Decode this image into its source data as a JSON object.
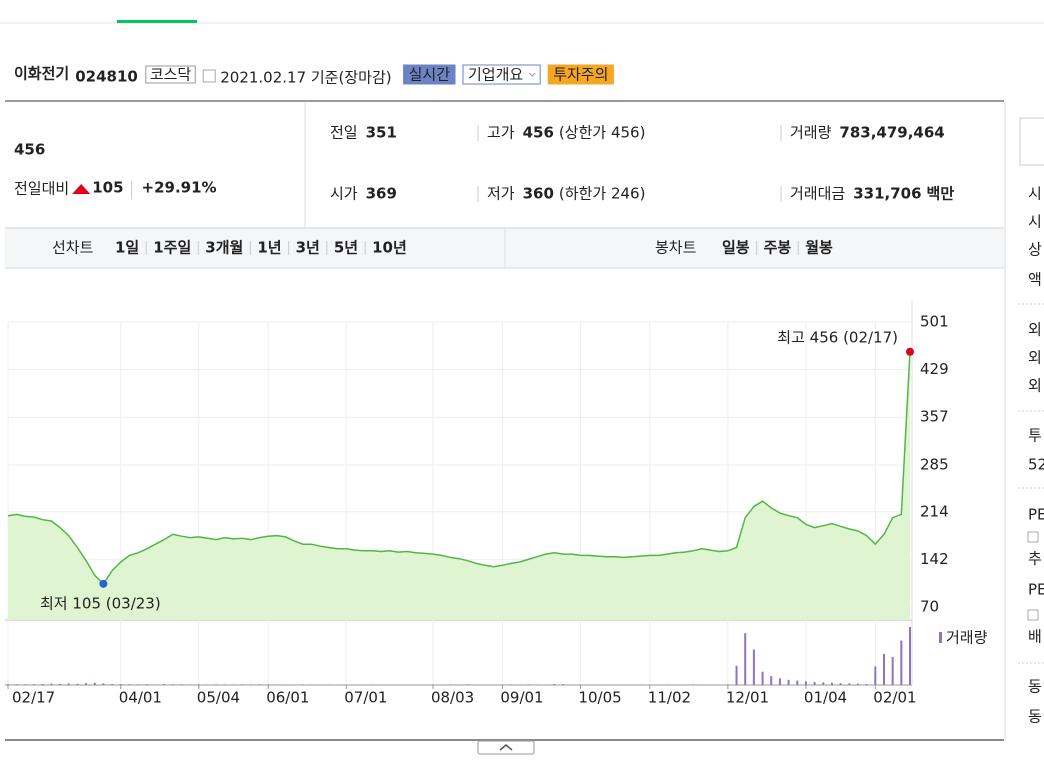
{
  "header": {
    "name": "이화전기",
    "code": "024810",
    "market": "코스닥",
    "date": "2021.02.17 기준(장마감)",
    "badges": [
      "실시간",
      "기업개요",
      "투자주의"
    ]
  },
  "quote": {
    "price": "456",
    "change_label": "전일대비",
    "change": "105",
    "change_rate": "+29.91%",
    "rows": [
      [
        {
          "label": "전일",
          "value": "351",
          "color": "#222222"
        },
        {
          "label": "고가",
          "value": "456",
          "note": "(상한가 456)",
          "color": "#e0001a"
        },
        {
          "label": "거래량",
          "value": "783,479,464",
          "color": "#222222"
        }
      ],
      [
        {
          "label": "시가",
          "value": "369",
          "color": "#e0001a"
        },
        {
          "label": "저가",
          "value": "360",
          "note": "(하한가 246)",
          "color": "#e0001a"
        },
        {
          "label": "거래대금",
          "value": "331,706",
          "note": "백만",
          "color": "#222222"
        }
      ]
    ]
  },
  "tabs": {
    "line_label": "선차트",
    "line_periods": [
      "1일",
      "1주일",
      "3개월",
      "1년",
      "3년",
      "5년",
      "10년"
    ],
    "selected": 3,
    "candle_label": "봉차트",
    "candle_periods": [
      "일봉",
      "주봉",
      "월봉"
    ]
  },
  "chart_data": {
    "type": "line",
    "color": "#52b646",
    "fill": "#dff5d2",
    "categories": [
      "02/17",
      null,
      null,
      null,
      null,
      null,
      null,
      null,
      null,
      null,
      null,
      null,
      null,
      "04/01",
      null,
      null,
      null,
      null,
      null,
      null,
      null,
      null,
      "05/04",
      null,
      null,
      null,
      null,
      null,
      null,
      null,
      "06/01",
      null,
      null,
      null,
      null,
      null,
      null,
      null,
      null,
      "07/01",
      null,
      null,
      null,
      null,
      null,
      null,
      null,
      null,
      null,
      "08/03",
      null,
      null,
      null,
      null,
      null,
      null,
      null,
      "09/01",
      null,
      null,
      null,
      null,
      null,
      null,
      null,
      null,
      "10/05",
      null,
      null,
      null,
      null,
      null,
      null,
      null,
      "11/02",
      null,
      null,
      null,
      null,
      null,
      null,
      null,
      null,
      "12/01",
      null,
      null,
      null,
      null,
      null,
      null,
      null,
      null,
      "01/04",
      null,
      null,
      null,
      null,
      null,
      null,
      null,
      "02/01",
      null,
      null,
      null,
      null
    ],
    "values": [
      208,
      210,
      207,
      206,
      202,
      200,
      190,
      178,
      160,
      140,
      118,
      105,
      125,
      138,
      148,
      152,
      158,
      165,
      172,
      180,
      177,
      175,
      176,
      174,
      172,
      175,
      173,
      174,
      172,
      175,
      177,
      178,
      176,
      170,
      165,
      165,
      162,
      160,
      158,
      158,
      156,
      155,
      155,
      154,
      155,
      153,
      154,
      152,
      151,
      150,
      148,
      145,
      143,
      140,
      136,
      133,
      131,
      133,
      136,
      138,
      142,
      146,
      150,
      152,
      150,
      150,
      148,
      148,
      147,
      146,
      146,
      145,
      146,
      147,
      148,
      148,
      150,
      152,
      153,
      155,
      158,
      156,
      154,
      155,
      160,
      205,
      222,
      230,
      220,
      212,
      208,
      205,
      195,
      190,
      193,
      196,
      192,
      188,
      185,
      178,
      165,
      180,
      205,
      210,
      456
    ],
    "ylim": [
      70,
      501
    ],
    "yticks": [
      70,
      142,
      214,
      285,
      357,
      429,
      501
    ],
    "grid": true,
    "max_label": "최고 456 (02/17)",
    "min_label": "최저 105 (03/23)",
    "volume": {
      "name": "거래량",
      "color": "#8d74c4",
      "values": [
        12,
        10,
        9,
        11,
        15,
        18,
        14,
        20,
        16,
        25,
        30,
        22,
        14,
        12,
        10,
        9,
        11,
        8,
        12,
        10,
        9,
        8,
        10,
        7,
        9,
        8,
        7,
        9,
        8,
        10,
        9,
        8,
        7,
        6,
        8,
        7,
        6,
        7,
        6,
        5,
        6,
        5,
        7,
        6,
        5,
        6,
        5,
        6,
        5,
        7,
        6,
        8,
        7,
        9,
        6,
        5,
        6,
        7,
        8,
        6,
        9,
        6,
        5,
        15,
        12,
        6,
        5,
        6,
        5,
        6,
        5,
        6,
        5,
        6,
        5,
        6,
        7,
        5,
        6,
        8,
        7,
        6,
        5,
        8,
        260,
        700,
        480,
        180,
        120,
        90,
        70,
        60,
        50,
        40,
        35,
        30,
        25,
        20,
        18,
        15,
        250,
        420,
        380,
        600,
        783
      ]
    }
  },
  "side": [
    "시",
    "시",
    "상",
    "액",
    "외",
    "외",
    "외",
    "투",
    "52",
    "PE",
    "추",
    "PE",
    "배",
    "동",
    "동"
  ]
}
